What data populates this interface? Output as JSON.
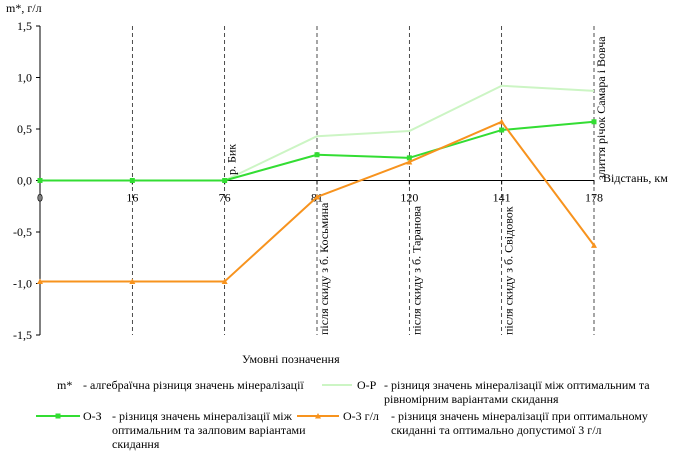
{
  "chart_data": {
    "type": "line",
    "ylabel": "m*, г/л",
    "xlabel": "Відстань, км",
    "categories": [
      "0",
      "16",
      "76",
      "81",
      "120",
      "141",
      "178"
    ],
    "yticks": [
      "-1,5",
      "-1,0",
      "-0,5",
      "0,0",
      "0,5",
      "1,0",
      "1,5"
    ],
    "ylim": [
      -1.5,
      1.5
    ],
    "grid": "vertical-dashed-at-stations",
    "series": [
      {
        "name": "О-Р",
        "color": "#ccf5c4",
        "marker": "none",
        "values": [
          0,
          0,
          0,
          0.43,
          0.48,
          0.92,
          0.87
        ]
      },
      {
        "name": "О-З",
        "color": "#33dd33",
        "marker": "square",
        "values": [
          0,
          0,
          0,
          0.25,
          0.22,
          0.49,
          0.57
        ]
      },
      {
        "name": "О-3 г/л",
        "color": "#f7931e",
        "marker": "triangle",
        "values": [
          -0.98,
          -0.98,
          -0.98,
          -0.16,
          0.18,
          0.57,
          -0.63
        ]
      }
    ],
    "annotations": [
      {
        "category": "76",
        "text": "р. Бик"
      },
      {
        "category": "81",
        "text": "після скиду з б. Косьмина"
      },
      {
        "category": "120",
        "text": "після скиду з б. Таранова"
      },
      {
        "category": "141",
        "text": "після скиду з б. Свідовок"
      },
      {
        "category": "178",
        "text": "злиття річок Самара і Вовча"
      }
    ]
  },
  "legend": {
    "title": "Умовні позначення",
    "mstar_key": "m*",
    "mstar_desc": "- алгебраїчна різниця значень мінералізації",
    "or_label": "О-Р",
    "or_desc": "- різниця значень мінералізації між оптимальним та\nрівномірним варіантами скидання",
    "oz_label": "О-З",
    "oz_desc": "- різниця значень мінералізації між\nоптимальним та залповим варіантами\nскидання",
    "o3_label": "О-3 г/л",
    "o3_desc": "- різниця значень мінералізації при оптимальному\nскиданні та оптимально допустимої 3 г/л"
  }
}
